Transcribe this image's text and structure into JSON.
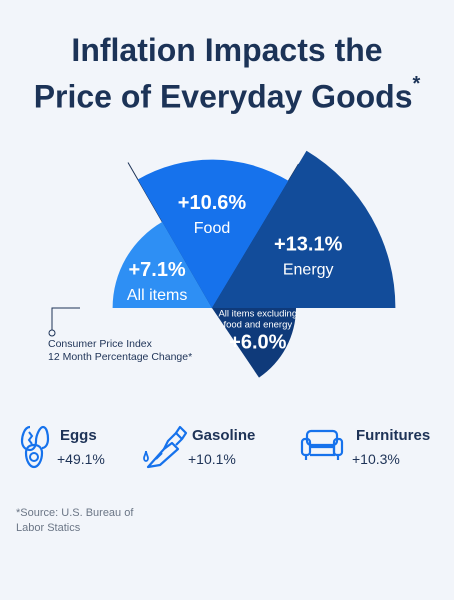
{
  "title": {
    "line1": "Inflation Impacts the",
    "line2": "Price of Everyday Goods",
    "marker": "*"
  },
  "chart_data": {
    "type": "pie",
    "title": "Inflation Impacts the Price of Everyday Goods*",
    "note": "Consumer Price Index\n12 Month Percentage Change*",
    "unit": "%",
    "slices": [
      {
        "value": "+7.1%",
        "number": 7.1,
        "label": "All items",
        "color": "#2e8ff4"
      },
      {
        "value": "+10.6%",
        "number": 10.6,
        "label": "Food",
        "color": "#1672ec"
      },
      {
        "value": "+13.1%",
        "number": 13.1,
        "label": "Energy",
        "color": "#124c9a"
      },
      {
        "value": "+6.0%",
        "number": 6.0,
        "label": "All items excluding food and energy",
        "label_lines": [
          "All items excluding",
          "food and energy"
        ],
        "color": "#0f3a7a"
      }
    ]
  },
  "note": {
    "line1": "Consumer Price Index",
    "line2": "12 Month Percentage Change*"
  },
  "items": [
    {
      "label": "Eggs",
      "value": "+49.1%",
      "icon": "egg-icon"
    },
    {
      "label": "Gasoline",
      "value": "+10.1%",
      "icon": "fuel-nozzle-icon"
    },
    {
      "label": "Furnitures",
      "value": "+10.3%",
      "icon": "sofa-icon"
    }
  ],
  "source": {
    "line1": "*Source: U.S. Bureau of",
    "line2": "Labor Statics"
  },
  "colors": {
    "accent": "#1672ec",
    "dark": "#1c3357"
  }
}
